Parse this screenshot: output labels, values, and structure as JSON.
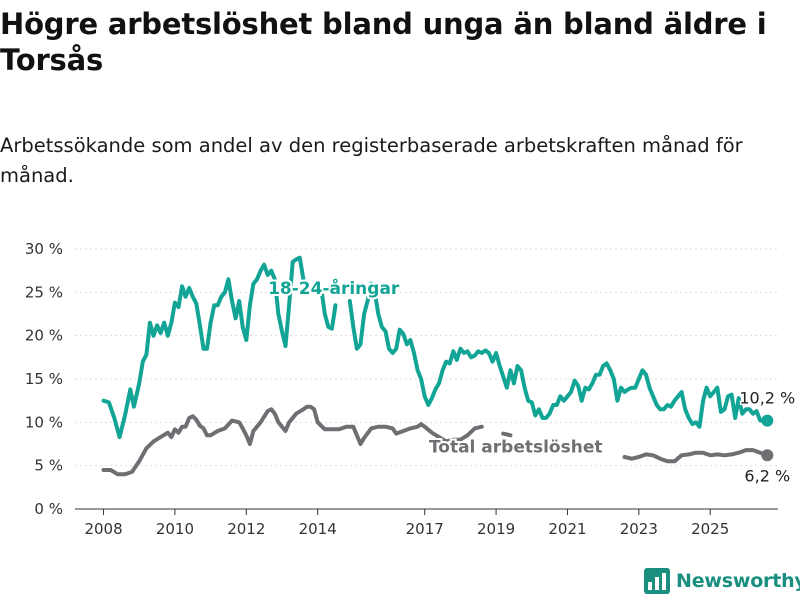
{
  "header": {
    "title": "Högre arbetslöshet bland unga än bland äldre i Torsås",
    "subtitle": "Arbetssökande som andel av den registerbaserade arbetskraften månad för månad."
  },
  "brand": {
    "name": "Newsworthy",
    "logo_icon": "bar-chart-logo-icon",
    "color": "#1a8f80"
  },
  "chart_data": {
    "type": "line",
    "title": "Högre arbetslöshet bland unga än bland äldre i Torsås",
    "subtitle": "Arbetssökande som andel av den registerbaserade arbetskraften månad för månad.",
    "x_unit": "year",
    "x_ticks": [
      2008,
      2010,
      2012,
      2014,
      2017,
      2019,
      2021,
      2023,
      2025
    ],
    "x_tick_labels": [
      "2008",
      "2010",
      "2012",
      "2014",
      "2017",
      "2019",
      "2021",
      "2023",
      "2025"
    ],
    "xlim": [
      2007.2,
      2026.9
    ],
    "ylim": [
      0,
      30
    ],
    "y_ticks": [
      0,
      5,
      10,
      15,
      20,
      25,
      30
    ],
    "y_tick_labels": [
      "0 %",
      "5 %",
      "10 %",
      "15 %",
      "20 %",
      "25 %",
      "30 %"
    ],
    "grid": "horizontal",
    "series": [
      {
        "name": "18-24-åringar",
        "color": "#12a596",
        "label_at": {
          "x": 2014.45,
          "y": 25.5
        },
        "end_label": "10,2 %",
        "points": [
          [
            2008.0,
            12.5
          ],
          [
            2008.15,
            12.3
          ],
          [
            2008.3,
            10.5
          ],
          [
            2008.45,
            8.3
          ],
          [
            2008.6,
            10.8
          ],
          [
            2008.75,
            13.8
          ],
          [
            2008.85,
            11.8
          ],
          [
            2009.0,
            14.5
          ],
          [
            2009.1,
            17.0
          ],
          [
            2009.2,
            17.8
          ],
          [
            2009.3,
            21.5
          ],
          [
            2009.4,
            20.0
          ],
          [
            2009.5,
            21.2
          ],
          [
            2009.6,
            20.3
          ],
          [
            2009.7,
            21.5
          ],
          [
            2009.8,
            20.0
          ],
          [
            2009.9,
            21.5
          ],
          [
            2010.0,
            23.8
          ],
          [
            2010.1,
            23.3
          ],
          [
            2010.2,
            25.7
          ],
          [
            2010.3,
            24.5
          ],
          [
            2010.4,
            25.5
          ],
          [
            2010.5,
            24.5
          ],
          [
            2010.6,
            23.7
          ],
          [
            2010.7,
            21.2
          ],
          [
            2010.8,
            18.5
          ],
          [
            2010.9,
            18.5
          ],
          [
            2011.0,
            21.5
          ],
          [
            2011.1,
            23.5
          ],
          [
            2011.2,
            23.5
          ],
          [
            2011.3,
            24.5
          ],
          [
            2011.4,
            25.0
          ],
          [
            2011.5,
            26.5
          ],
          [
            2011.6,
            24.0
          ],
          [
            2011.7,
            22.0
          ],
          [
            2011.8,
            24.0
          ],
          [
            2011.9,
            21.0
          ],
          [
            2012.0,
            19.5
          ],
          [
            2012.1,
            23.5
          ],
          [
            2012.2,
            26.0
          ],
          [
            2012.3,
            26.5
          ],
          [
            2012.4,
            27.5
          ],
          [
            2012.5,
            28.2
          ],
          [
            2012.6,
            27.0
          ],
          [
            2012.7,
            27.5
          ],
          [
            2012.8,
            26.5
          ],
          [
            2012.9,
            22.5
          ],
          [
            2013.0,
            20.5
          ],
          [
            2013.1,
            18.8
          ],
          [
            2013.2,
            23.5
          ],
          [
            2013.3,
            28.5
          ],
          [
            2013.4,
            28.8
          ],
          [
            2013.5,
            29.0
          ],
          [
            2013.6,
            26.5
          ],
          null,
          [
            2014.1,
            25.5
          ],
          [
            2014.2,
            22.5
          ],
          [
            2014.3,
            21.0
          ],
          [
            2014.4,
            20.8
          ],
          [
            2014.5,
            23.5
          ],
          null,
          [
            2014.9,
            24.0
          ],
          [
            2015.0,
            21.0
          ],
          [
            2015.1,
            18.5
          ],
          [
            2015.2,
            19.0
          ],
          [
            2015.3,
            22.5
          ],
          [
            2015.4,
            24.0
          ],
          [
            2015.5,
            26.0
          ],
          [
            2015.6,
            25.0
          ],
          [
            2015.7,
            22.5
          ],
          [
            2015.8,
            21.0
          ],
          [
            2015.9,
            20.5
          ],
          [
            2016.0,
            18.5
          ],
          [
            2016.1,
            18.0
          ],
          [
            2016.2,
            18.5
          ],
          [
            2016.3,
            20.7
          ],
          [
            2016.4,
            20.2
          ],
          [
            2016.5,
            19.0
          ],
          [
            2016.6,
            19.5
          ],
          [
            2016.7,
            18.0
          ],
          [
            2016.8,
            16.0
          ],
          [
            2016.9,
            15.0
          ],
          [
            2017.0,
            13.0
          ],
          [
            2017.1,
            12.0
          ],
          [
            2017.2,
            12.8
          ],
          [
            2017.3,
            13.8
          ],
          [
            2017.4,
            14.5
          ],
          [
            2017.5,
            16.0
          ],
          [
            2017.6,
            17.0
          ],
          [
            2017.7,
            16.8
          ],
          [
            2017.8,
            18.2
          ],
          [
            2017.9,
            17.2
          ],
          [
            2018.0,
            18.5
          ],
          [
            2018.1,
            18.0
          ],
          [
            2018.2,
            18.2
          ],
          [
            2018.3,
            17.5
          ],
          [
            2018.4,
            17.7
          ],
          [
            2018.5,
            18.2
          ],
          [
            2018.6,
            18.0
          ],
          [
            2018.7,
            18.3
          ],
          [
            2018.8,
            18.0
          ],
          [
            2018.9,
            17.0
          ],
          [
            2019.0,
            18.0
          ],
          [
            2019.1,
            16.5
          ],
          [
            2019.2,
            15.3
          ],
          [
            2019.3,
            14.0
          ],
          [
            2019.4,
            16.0
          ],
          [
            2019.5,
            14.5
          ],
          [
            2019.6,
            16.5
          ],
          [
            2019.7,
            16.0
          ],
          [
            2019.8,
            14.0
          ],
          [
            2019.9,
            12.5
          ],
          [
            2020.0,
            12.3
          ],
          [
            2020.1,
            10.8
          ],
          [
            2020.2,
            11.5
          ],
          [
            2020.3,
            10.5
          ],
          [
            2020.4,
            10.5
          ],
          [
            2020.5,
            11.0
          ],
          [
            2020.6,
            12.0
          ],
          [
            2020.7,
            12.0
          ],
          [
            2020.8,
            13.0
          ],
          [
            2020.9,
            12.5
          ],
          [
            2021.0,
            13.0
          ],
          [
            2021.1,
            13.5
          ],
          [
            2021.2,
            14.8
          ],
          [
            2021.3,
            14.2
          ],
          [
            2021.4,
            12.5
          ],
          [
            2021.5,
            14.0
          ],
          [
            2021.6,
            13.8
          ],
          [
            2021.7,
            14.5
          ],
          [
            2021.8,
            15.5
          ],
          [
            2021.9,
            15.5
          ],
          [
            2022.0,
            16.5
          ],
          [
            2022.1,
            16.8
          ],
          [
            2022.2,
            16.0
          ],
          [
            2022.3,
            15.0
          ],
          [
            2022.4,
            12.5
          ],
          [
            2022.5,
            14.0
          ],
          [
            2022.6,
            13.5
          ],
          [
            2022.7,
            13.8
          ],
          [
            2022.8,
            14.0
          ],
          [
            2022.9,
            14.0
          ],
          [
            2023.0,
            15.0
          ],
          [
            2023.1,
            16.0
          ],
          [
            2023.2,
            15.5
          ],
          [
            2023.3,
            14.0
          ],
          [
            2023.4,
            13.0
          ],
          [
            2023.5,
            12.0
          ],
          [
            2023.6,
            11.5
          ],
          [
            2023.7,
            11.5
          ],
          [
            2023.8,
            12.0
          ],
          [
            2023.9,
            11.8
          ],
          [
            2024.0,
            12.5
          ],
          [
            2024.1,
            13.0
          ],
          [
            2024.2,
            13.5
          ],
          [
            2024.3,
            11.5
          ],
          [
            2024.4,
            10.5
          ],
          [
            2024.5,
            9.8
          ],
          [
            2024.6,
            10.0
          ],
          [
            2024.7,
            9.5
          ],
          [
            2024.8,
            12.5
          ],
          [
            2024.9,
            14.0
          ],
          [
            2025.0,
            13.0
          ],
          [
            2025.1,
            13.5
          ],
          [
            2025.2,
            14.0
          ],
          [
            2025.3,
            11.2
          ],
          [
            2025.4,
            11.5
          ],
          [
            2025.5,
            13.0
          ],
          [
            2025.6,
            13.2
          ],
          [
            2025.7,
            10.5
          ],
          [
            2025.8,
            12.8
          ],
          [
            2025.9,
            11.0
          ],
          [
            2026.0,
            11.5
          ],
          [
            2026.1,
            11.5
          ],
          [
            2026.2,
            11.0
          ],
          [
            2026.3,
            11.3
          ],
          [
            2026.4,
            10.2
          ],
          [
            2026.5,
            10.2
          ],
          [
            2026.6,
            10.2
          ]
        ]
      },
      {
        "name": "Total arbetslöshet",
        "color": "#6e6e73",
        "label_at": {
          "x": 2019.55,
          "y": 7.2
        },
        "end_label": "6,2 %",
        "points": [
          [
            2008.0,
            4.5
          ],
          [
            2008.2,
            4.5
          ],
          [
            2008.4,
            4.0
          ],
          [
            2008.6,
            4.0
          ],
          [
            2008.8,
            4.3
          ],
          [
            2009.0,
            5.5
          ],
          [
            2009.2,
            7.0
          ],
          [
            2009.4,
            7.8
          ],
          [
            2009.6,
            8.3
          ],
          [
            2009.8,
            8.8
          ],
          [
            2009.9,
            8.3
          ],
          [
            2010.0,
            9.2
          ],
          [
            2010.1,
            8.8
          ],
          [
            2010.2,
            9.5
          ],
          [
            2010.3,
            9.5
          ],
          [
            2010.4,
            10.5
          ],
          [
            2010.5,
            10.7
          ],
          [
            2010.6,
            10.3
          ],
          [
            2010.7,
            9.6
          ],
          [
            2010.8,
            9.3
          ],
          [
            2010.9,
            8.5
          ],
          [
            2011.0,
            8.5
          ],
          [
            2011.2,
            9.0
          ],
          [
            2011.4,
            9.3
          ],
          [
            2011.6,
            10.2
          ],
          [
            2011.8,
            10.0
          ],
          [
            2011.9,
            9.3
          ],
          [
            2012.0,
            8.5
          ],
          [
            2012.1,
            7.5
          ],
          [
            2012.2,
            9.0
          ],
          [
            2012.4,
            10.0
          ],
          [
            2012.6,
            11.3
          ],
          [
            2012.7,
            11.5
          ],
          [
            2012.8,
            11.0
          ],
          [
            2012.9,
            10.0
          ],
          [
            2013.0,
            9.5
          ],
          [
            2013.1,
            9.0
          ],
          [
            2013.2,
            10.0
          ],
          [
            2013.4,
            11.0
          ],
          [
            2013.6,
            11.5
          ],
          [
            2013.7,
            11.8
          ],
          [
            2013.8,
            11.8
          ],
          [
            2013.9,
            11.5
          ],
          [
            2014.0,
            10.0
          ],
          [
            2014.2,
            9.2
          ],
          [
            2014.4,
            9.2
          ],
          [
            2014.6,
            9.2
          ],
          [
            2014.8,
            9.5
          ],
          [
            2015.0,
            9.5
          ],
          [
            2015.1,
            8.5
          ],
          [
            2015.2,
            7.5
          ],
          [
            2015.3,
            8.2
          ],
          [
            2015.5,
            9.3
          ],
          [
            2015.7,
            9.5
          ],
          [
            2015.9,
            9.5
          ],
          [
            2016.1,
            9.3
          ],
          [
            2016.2,
            8.7
          ],
          [
            2016.4,
            9.0
          ],
          [
            2016.6,
            9.3
          ],
          [
            2016.8,
            9.5
          ],
          [
            2016.9,
            9.8
          ],
          [
            2017.0,
            9.5
          ],
          [
            2017.2,
            8.8
          ],
          [
            2017.4,
            8.3
          ],
          [
            2017.6,
            7.8
          ],
          [
            2017.8,
            8.0
          ],
          [
            2018.0,
            8.0
          ],
          [
            2018.2,
            8.5
          ],
          [
            2018.4,
            9.3
          ],
          [
            2018.6,
            9.5
          ],
          null,
          [
            2019.2,
            8.7
          ],
          [
            2019.4,
            8.5
          ],
          null,
          [
            2022.6,
            6.0
          ],
          [
            2022.8,
            5.8
          ],
          [
            2023.0,
            6.0
          ],
          [
            2023.2,
            6.3
          ],
          [
            2023.4,
            6.2
          ],
          [
            2023.6,
            5.8
          ],
          [
            2023.8,
            5.5
          ],
          [
            2024.0,
            5.5
          ],
          [
            2024.2,
            6.2
          ],
          [
            2024.4,
            6.3
          ],
          [
            2024.6,
            6.5
          ],
          [
            2024.8,
            6.5
          ],
          [
            2025.0,
            6.2
          ],
          [
            2025.2,
            6.3
          ],
          [
            2025.4,
            6.2
          ],
          [
            2025.6,
            6.3
          ],
          [
            2025.8,
            6.5
          ],
          [
            2026.0,
            6.8
          ],
          [
            2026.2,
            6.8
          ],
          [
            2026.4,
            6.5
          ],
          [
            2026.6,
            6.2
          ]
        ]
      }
    ]
  }
}
